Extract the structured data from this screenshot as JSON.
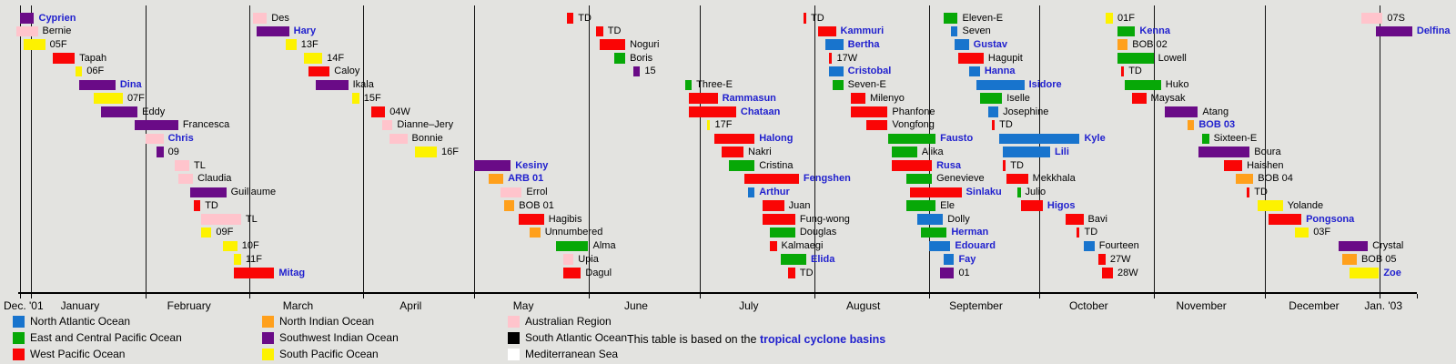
{
  "page": {
    "background": "#e3e3e0",
    "link_color": "#2121ce",
    "text_color": "#000000"
  },
  "chart_data": {
    "type": "gantt-timeline",
    "axis": {
      "start_label": "Dec. '01",
      "end_label": "Jan. '03",
      "month_labels": [
        "January",
        "February",
        "March",
        "April",
        "May",
        "June",
        "July",
        "August",
        "September",
        "October",
        "November",
        "December"
      ],
      "domain_start": "2001-12-29",
      "domain_end": "2003-01-11",
      "grid": "monthly vertical dividers"
    },
    "row_count": 20,
    "basin_colors": {
      "NATL": "#1874cd",
      "EPAC": "#07a807",
      "WPAC": "#fa0505",
      "NIO": "#ffa01c",
      "SWIO": "#6a0b87",
      "SPAC": "#fdf200",
      "AUS": "#ffc4cc",
      "SATL": "#000000",
      "MED": "#ffffff"
    },
    "legend": [
      {
        "key": "NATL",
        "label": "North Atlantic Ocean"
      },
      {
        "key": "EPAC",
        "label": "East and Central Pacific Ocean"
      },
      {
        "key": "WPAC",
        "label": "West Pacific Ocean"
      },
      {
        "key": "NIO",
        "label": "North Indian Ocean"
      },
      {
        "key": "SWIO",
        "label": "Southwest Indian Ocean"
      },
      {
        "key": "SPAC",
        "label": "South Pacific Ocean"
      },
      {
        "key": "AUS",
        "label": "Australian Region"
      },
      {
        "key": "SATL",
        "label": "South Atlantic Ocean"
      },
      {
        "key": "MED",
        "label": "Mediterranean Sea"
      }
    ],
    "note": {
      "text": "This table is based on the ",
      "link_text": "tropical cyclone basins"
    },
    "storms": [
      {
        "n": "Cyprien",
        "b": "SWIO",
        "s": "2001-12-29",
        "e": "2002-01-01",
        "a": true
      },
      {
        "n": "Bernie",
        "b": "AUS",
        "s": "2001-12-28",
        "e": "2002-01-02",
        "a": false
      },
      {
        "n": "05F",
        "b": "SPAC",
        "s": "2001-12-30",
        "e": "2002-01-04",
        "a": false
      },
      {
        "n": "Tapah",
        "b": "WPAC",
        "s": "2002-01-07",
        "e": "2002-01-12",
        "a": false
      },
      {
        "n": "06F",
        "b": "SPAC",
        "s": "2002-01-13",
        "e": "2002-01-14",
        "a": false
      },
      {
        "n": "Dina",
        "b": "SWIO",
        "s": "2002-01-14",
        "e": "2002-01-23",
        "a": true
      },
      {
        "n": "07F",
        "b": "SPAC",
        "s": "2002-01-18",
        "e": "2002-01-25",
        "a": false
      },
      {
        "n": "Eddy",
        "b": "SWIO",
        "s": "2002-01-20",
        "e": "2002-01-29",
        "a": false
      },
      {
        "n": "Francesca",
        "b": "SWIO",
        "s": "2002-01-29",
        "e": "2002-02-09",
        "a": false
      },
      {
        "n": "Chris",
        "b": "AUS",
        "s": "2002-02-01",
        "e": "2002-02-05",
        "a": true
      },
      {
        "n": "09",
        "b": "SWIO",
        "s": "2002-02-04",
        "e": "2002-02-05",
        "a": false
      },
      {
        "n": "TL",
        "b": "AUS",
        "s": "2002-02-09",
        "e": "2002-02-12",
        "a": false
      },
      {
        "n": "Claudia",
        "b": "AUS",
        "s": "2002-02-10",
        "e": "2002-02-13",
        "a": false
      },
      {
        "n": "Guillaume",
        "b": "SWIO",
        "s": "2002-02-13",
        "e": "2002-02-22",
        "a": false
      },
      {
        "n": "TD",
        "b": "WPAC",
        "s": "2002-02-14",
        "e": "2002-02-15",
        "a": false
      },
      {
        "n": "TL",
        "b": "AUS",
        "s": "2002-02-16",
        "e": "2002-02-26",
        "a": false
      },
      {
        "n": "09F",
        "b": "SPAC",
        "s": "2002-02-16",
        "e": "2002-02-18",
        "a": false
      },
      {
        "n": "10F",
        "b": "SPAC",
        "s": "2002-02-22",
        "e": "2002-02-25",
        "a": false
      },
      {
        "n": "11F",
        "b": "SPAC",
        "s": "2002-02-25",
        "e": "2002-02-26",
        "a": false
      },
      {
        "n": "Mitag",
        "b": "WPAC",
        "s": "2002-02-25",
        "e": "2002-03-07",
        "a": true
      },
      {
        "n": "Des",
        "b": "AUS",
        "s": "2002-03-02",
        "e": "2002-03-05",
        "a": false
      },
      {
        "n": "Hary",
        "b": "SWIO",
        "s": "2002-03-03",
        "e": "2002-03-11",
        "a": true
      },
      {
        "n": "13F",
        "b": "SPAC",
        "s": "2002-03-11",
        "e": "2002-03-13",
        "a": false
      },
      {
        "n": "14F",
        "b": "SPAC",
        "s": "2002-03-16",
        "e": "2002-03-20",
        "a": false
      },
      {
        "n": "Caloy",
        "b": "WPAC",
        "s": "2002-03-17",
        "e": "2002-03-22",
        "a": false
      },
      {
        "n": "Ikala",
        "b": "SWIO",
        "s": "2002-03-19",
        "e": "2002-03-27",
        "a": false
      },
      {
        "n": "15F",
        "b": "SPAC",
        "s": "2002-03-29",
        "e": "2002-03-30",
        "a": false
      },
      {
        "n": "04W",
        "b": "WPAC",
        "s": "2002-04-03",
        "e": "2002-04-06",
        "a": false
      },
      {
        "n": "Dianne–Jery",
        "b": "AUS",
        "s": "2002-04-06",
        "e": "2002-04-08",
        "a": false
      },
      {
        "n": "Bonnie",
        "b": "AUS",
        "s": "2002-04-08",
        "e": "2002-04-12",
        "a": false
      },
      {
        "n": "16F",
        "b": "SPAC",
        "s": "2002-04-15",
        "e": "2002-04-20",
        "a": false
      },
      {
        "n": "Kesiny",
        "b": "SWIO",
        "s": "2002-05-01",
        "e": "2002-05-10",
        "a": true
      },
      {
        "n": "ARB 01",
        "b": "NIO",
        "s": "2002-05-05",
        "e": "2002-05-08",
        "a": true
      },
      {
        "n": "Errol",
        "b": "AUS",
        "s": "2002-05-08",
        "e": "2002-05-13",
        "a": false
      },
      {
        "n": "BOB 01",
        "b": "NIO",
        "s": "2002-05-09",
        "e": "2002-05-11",
        "a": false
      },
      {
        "n": "Hagibis",
        "b": "WPAC",
        "s": "2002-05-13",
        "e": "2002-05-19",
        "a": false
      },
      {
        "n": "Unnumbered",
        "b": "NIO",
        "s": "2002-05-16",
        "e": "2002-05-18",
        "a": false
      },
      {
        "n": "Alma",
        "b": "EPAC",
        "s": "2002-05-23",
        "e": "2002-05-31",
        "a": false
      },
      {
        "n": "Upia",
        "b": "AUS",
        "s": "2002-05-25",
        "e": "2002-05-27",
        "a": false
      },
      {
        "n": "Dagul",
        "b": "WPAC",
        "s": "2002-05-25",
        "e": "2002-05-29",
        "a": false
      },
      {
        "n": "TD",
        "b": "WPAC",
        "s": "2002-05-26",
        "e": "2002-05-27",
        "a": false
      },
      {
        "n": "TD",
        "b": "WPAC",
        "s": "2002-06-03",
        "e": "2002-06-04",
        "a": false
      },
      {
        "n": "Noguri",
        "b": "WPAC",
        "s": "2002-06-04",
        "e": "2002-06-10",
        "a": false
      },
      {
        "n": "Boris",
        "b": "EPAC",
        "s": "2002-06-08",
        "e": "2002-06-10",
        "a": false
      },
      {
        "n": "15",
        "b": "SWIO",
        "s": "2002-06-13",
        "e": "2002-06-14",
        "a": false
      },
      {
        "n": "Three-E",
        "b": "EPAC",
        "s": "2002-06-27",
        "e": "2002-06-28",
        "a": false
      },
      {
        "n": "Rammasun",
        "b": "WPAC",
        "s": "2002-06-28",
        "e": "2002-07-05",
        "a": true
      },
      {
        "n": "Chataan",
        "b": "WPAC",
        "s": "2002-06-28",
        "e": "2002-07-10",
        "a": true
      },
      {
        "n": "17F",
        "b": "SPAC",
        "s": "2002-07-03",
        "e": "2002-07-03",
        "a": false
      },
      {
        "n": "Halong",
        "b": "WPAC",
        "s": "2002-07-05",
        "e": "2002-07-15",
        "a": true
      },
      {
        "n": "Nakri",
        "b": "WPAC",
        "s": "2002-07-07",
        "e": "2002-07-12",
        "a": false
      },
      {
        "n": "Cristina",
        "b": "EPAC",
        "s": "2002-07-09",
        "e": "2002-07-15",
        "a": false
      },
      {
        "n": "Fengshen",
        "b": "WPAC",
        "s": "2002-07-13",
        "e": "2002-07-27",
        "a": true
      },
      {
        "n": "Arthur",
        "b": "NATL",
        "s": "2002-07-14",
        "e": "2002-07-15",
        "a": true
      },
      {
        "n": "Juan",
        "b": "WPAC",
        "s": "2002-07-18",
        "e": "2002-07-23",
        "a": false
      },
      {
        "n": "Fung-wong",
        "b": "WPAC",
        "s": "2002-07-18",
        "e": "2002-07-26",
        "a": false
      },
      {
        "n": "Douglas",
        "b": "EPAC",
        "s": "2002-07-20",
        "e": "2002-07-26",
        "a": false
      },
      {
        "n": "Kalmaegi",
        "b": "WPAC",
        "s": "2002-07-20",
        "e": "2002-07-21",
        "a": false
      },
      {
        "n": "Elida",
        "b": "EPAC",
        "s": "2002-07-23",
        "e": "2002-07-29",
        "a": true
      },
      {
        "n": "TD",
        "b": "WPAC",
        "s": "2002-07-25",
        "e": "2002-07-26",
        "a": false
      },
      {
        "n": "TD",
        "b": "WPAC",
        "s": "2002-07-29",
        "e": "2002-07-29",
        "a": false
      },
      {
        "n": "Kammuri",
        "b": "WPAC",
        "s": "2002-08-02",
        "e": "2002-08-06",
        "a": true
      },
      {
        "n": "Bertha",
        "b": "NATL",
        "s": "2002-08-04",
        "e": "2002-08-08",
        "a": true
      },
      {
        "n": "17W",
        "b": "WPAC",
        "s": "2002-08-05",
        "e": "2002-08-05",
        "a": false
      },
      {
        "n": "Cristobal",
        "b": "NATL",
        "s": "2002-08-05",
        "e": "2002-08-08",
        "a": true
      },
      {
        "n": "Seven-E",
        "b": "EPAC",
        "s": "2002-08-06",
        "e": "2002-08-08",
        "a": false
      },
      {
        "n": "Milenyo",
        "b": "WPAC",
        "s": "2002-08-11",
        "e": "2002-08-14",
        "a": false
      },
      {
        "n": "Phanfone",
        "b": "WPAC",
        "s": "2002-08-11",
        "e": "2002-08-20",
        "a": false
      },
      {
        "n": "Vongfong",
        "b": "WPAC",
        "s": "2002-08-15",
        "e": "2002-08-20",
        "a": false
      },
      {
        "n": "Fausto",
        "b": "EPAC",
        "s": "2002-08-21",
        "e": "2002-09-02",
        "a": true
      },
      {
        "n": "Alika",
        "b": "EPAC",
        "s": "2002-08-22",
        "e": "2002-08-28",
        "a": false
      },
      {
        "n": "Rusa",
        "b": "WPAC",
        "s": "2002-08-22",
        "e": "2002-09-01",
        "a": true
      },
      {
        "n": "Genevieve",
        "b": "EPAC",
        "s": "2002-08-26",
        "e": "2002-09-01",
        "a": false
      },
      {
        "n": "Sinlaku",
        "b": "WPAC",
        "s": "2002-08-27",
        "e": "2002-09-09",
        "a": true
      },
      {
        "n": "Ele",
        "b": "EPAC",
        "s": "2002-08-26",
        "e": "2002-09-02",
        "a": false
      },
      {
        "n": "Dolly",
        "b": "NATL",
        "s": "2002-08-29",
        "e": "2002-09-04",
        "a": false
      },
      {
        "n": "Herman",
        "b": "EPAC",
        "s": "2002-08-30",
        "e": "2002-09-05",
        "a": true
      },
      {
        "n": "Edouard",
        "b": "NATL",
        "s": "2002-09-01",
        "e": "2002-09-06",
        "a": true
      },
      {
        "n": "Fay",
        "b": "NATL",
        "s": "2002-09-05",
        "e": "2002-09-07",
        "a": true
      },
      {
        "n": "01",
        "b": "SWIO",
        "s": "2002-09-04",
        "e": "2002-09-07",
        "a": false
      },
      {
        "n": "Eleven-E",
        "b": "EPAC",
        "s": "2002-09-05",
        "e": "2002-09-08",
        "a": false
      },
      {
        "n": "Seven",
        "b": "NATL",
        "s": "2002-09-07",
        "e": "2002-09-08",
        "a": false
      },
      {
        "n": "Gustav",
        "b": "NATL",
        "s": "2002-09-08",
        "e": "2002-09-11",
        "a": true
      },
      {
        "n": "Hagupit",
        "b": "WPAC",
        "s": "2002-09-09",
        "e": "2002-09-15",
        "a": false
      },
      {
        "n": "Hanna",
        "b": "NATL",
        "s": "2002-09-12",
        "e": "2002-09-14",
        "a": true
      },
      {
        "n": "Isidore",
        "b": "NATL",
        "s": "2002-09-14",
        "e": "2002-09-26",
        "a": true
      },
      {
        "n": "Iselle",
        "b": "EPAC",
        "s": "2002-09-15",
        "e": "2002-09-20",
        "a": false
      },
      {
        "n": "Josephine",
        "b": "NATL",
        "s": "2002-09-17",
        "e": "2002-09-19",
        "a": false
      },
      {
        "n": "TD",
        "b": "WPAC",
        "s": "2002-09-18",
        "e": "2002-09-18",
        "a": false
      },
      {
        "n": "Kyle",
        "b": "NATL",
        "s": "2002-09-20",
        "e": "2002-10-11",
        "a": true
      },
      {
        "n": "Lili",
        "b": "NATL",
        "s": "2002-09-21",
        "e": "2002-10-03",
        "a": true
      },
      {
        "n": "TD",
        "b": "WPAC",
        "s": "2002-09-21",
        "e": "2002-09-21",
        "a": false
      },
      {
        "n": "Mekkhala",
        "b": "WPAC",
        "s": "2002-09-22",
        "e": "2002-09-27",
        "a": false
      },
      {
        "n": "Julio",
        "b": "EPAC",
        "s": "2002-09-25",
        "e": "2002-09-25",
        "a": false
      },
      {
        "n": "Higos",
        "b": "WPAC",
        "s": "2002-09-26",
        "e": "2002-10-01",
        "a": true
      },
      {
        "n": "Bavi",
        "b": "WPAC",
        "s": "2002-10-08",
        "e": "2002-10-12",
        "a": false
      },
      {
        "n": "TD",
        "b": "WPAC",
        "s": "2002-10-11",
        "e": "2002-10-11",
        "a": false
      },
      {
        "n": "Fourteen",
        "b": "NATL",
        "s": "2002-10-13",
        "e": "2002-10-15",
        "a": false
      },
      {
        "n": "27W",
        "b": "WPAC",
        "s": "2002-10-17",
        "e": "2002-10-18",
        "a": false
      },
      {
        "n": "28W",
        "b": "WPAC",
        "s": "2002-10-18",
        "e": "2002-10-20",
        "a": false
      },
      {
        "n": "01F",
        "b": "SPAC",
        "s": "2002-10-19",
        "e": "2002-10-20",
        "a": false
      },
      {
        "n": "Kenna",
        "b": "EPAC",
        "s": "2002-10-22",
        "e": "2002-10-26",
        "a": true
      },
      {
        "n": "BOB 02",
        "b": "NIO",
        "s": "2002-10-22",
        "e": "2002-10-24",
        "a": false
      },
      {
        "n": "Lowell",
        "b": "EPAC",
        "s": "2002-10-22",
        "e": "2002-10-31",
        "a": false
      },
      {
        "n": "TD",
        "b": "WPAC",
        "s": "2002-10-23",
        "e": "2002-10-23",
        "a": false
      },
      {
        "n": "Huko",
        "b": "EPAC",
        "s": "2002-10-24",
        "e": "2002-11-02",
        "a": false
      },
      {
        "n": "Maysak",
        "b": "WPAC",
        "s": "2002-10-26",
        "e": "2002-10-29",
        "a": false
      },
      {
        "n": "Atang",
        "b": "SWIO",
        "s": "2002-11-04",
        "e": "2002-11-12",
        "a": false
      },
      {
        "n": "BOB 03",
        "b": "NIO",
        "s": "2002-11-10",
        "e": "2002-11-11",
        "a": true
      },
      {
        "n": "Sixteen-E",
        "b": "EPAC",
        "s": "2002-11-14",
        "e": "2002-11-15",
        "a": false
      },
      {
        "n": "Boura",
        "b": "SWIO",
        "s": "2002-11-13",
        "e": "2002-11-26",
        "a": false
      },
      {
        "n": "Haishen",
        "b": "WPAC",
        "s": "2002-11-20",
        "e": "2002-11-24",
        "a": false
      },
      {
        "n": "BOB 04",
        "b": "NIO",
        "s": "2002-11-23",
        "e": "2002-11-27",
        "a": false
      },
      {
        "n": "TD",
        "b": "WPAC",
        "s": "2002-11-26",
        "e": "2002-11-26",
        "a": false
      },
      {
        "n": "Yolande",
        "b": "SPAC",
        "s": "2002-11-29",
        "e": "2002-12-05",
        "a": false
      },
      {
        "n": "Pongsona",
        "b": "WPAC",
        "s": "2002-12-02",
        "e": "2002-12-10",
        "a": true
      },
      {
        "n": "03F",
        "b": "SPAC",
        "s": "2002-12-09",
        "e": "2002-12-12",
        "a": false
      },
      {
        "n": "Crystal",
        "b": "SWIO",
        "s": "2002-12-21",
        "e": "2002-12-28",
        "a": false
      },
      {
        "n": "BOB 05",
        "b": "NIO",
        "s": "2002-12-22",
        "e": "2002-12-25",
        "a": false
      },
      {
        "n": "Zoe",
        "b": "SPAC",
        "s": "2002-12-24",
        "e": "2002-12-31",
        "a": true
      },
      {
        "n": "07S",
        "b": "AUS",
        "s": "2002-12-27",
        "e": "2003-01-01",
        "a": false
      },
      {
        "n": "Delfina",
        "b": "SWIO",
        "s": "2002-12-31",
        "e": "2003-01-09",
        "a": true
      }
    ]
  }
}
